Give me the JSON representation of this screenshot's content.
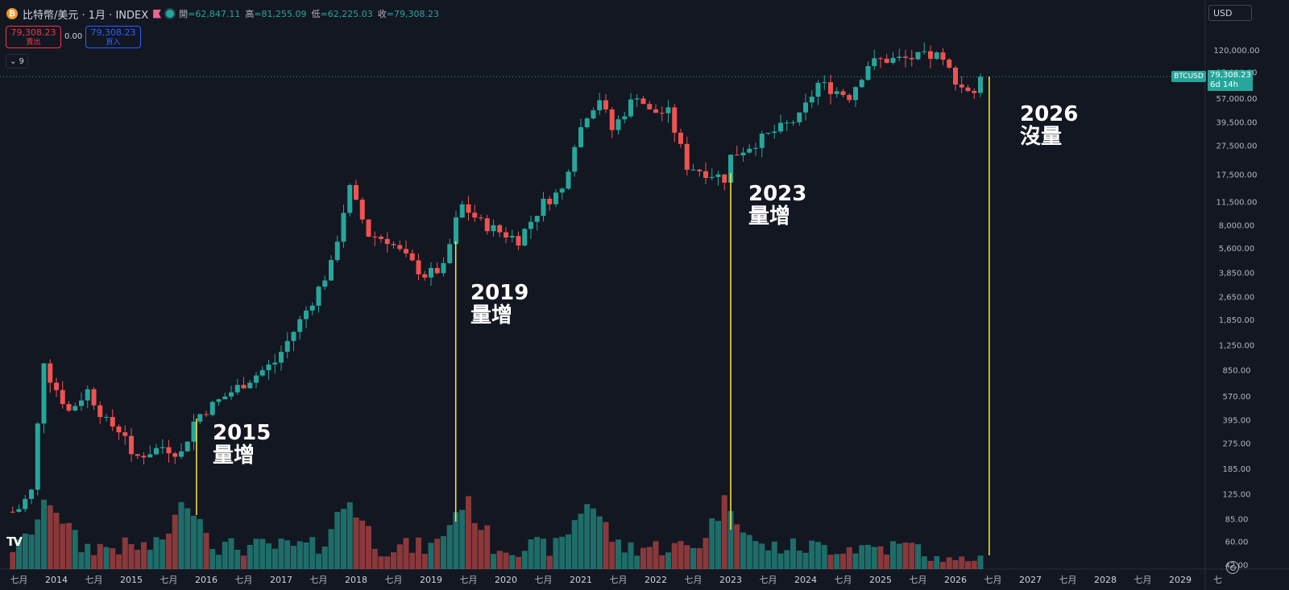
{
  "header": {
    "symbol_title": "比特幣/美元 · 1月 · INDEX",
    "open_label": "開",
    "open_value": "=62,847.11",
    "high_label": "高",
    "high_value": "=81,255.09",
    "low_label": "低",
    "low_value": "=62,225.03",
    "close_label": "收",
    "close_value": "=79,308.23",
    "sell_price": "79,308.23",
    "sell_label": "賣出",
    "buy_price": "79,308.23",
    "buy_label": "買入",
    "spread": "0.00",
    "indicators_count": "9",
    "currency": "USD"
  },
  "price_tag": {
    "symbol": "BTCUSD",
    "price": "79,308.23",
    "countdown": "6d 14h"
  },
  "annotations": [
    {
      "year": "2015",
      "text": "量增"
    },
    {
      "year": "2019",
      "text": "量增"
    },
    {
      "year": "2023",
      "text": "量增"
    },
    {
      "year": "2026",
      "text": "沒量"
    }
  ],
  "colors": {
    "up": "#26a69a",
    "down": "#ef5350",
    "background": "#131722",
    "annotation_line": "#ffeb3b"
  },
  "icons": {
    "symbol": "bitcoin-icon",
    "flag": "flag-icon",
    "status": "status-dot-icon",
    "settings": "gear-icon",
    "logo": "tradingview-logo"
  },
  "chart_data": {
    "type": "candlestick",
    "interval": "1 month",
    "y_scale": "log",
    "y_ticks": [
      "120,000.00",
      "85,000.00",
      "57,000.00",
      "39,500.00",
      "27,500.00",
      "17,500.00",
      "11,500.00",
      "8,000.00",
      "5,600.00",
      "3,850.00",
      "2,650.00",
      "1,850.00",
      "1,250.00",
      "850.00",
      "570.00",
      "395.00",
      "275.00",
      "185.00",
      "125.00",
      "85.00",
      "60.00",
      "42.00"
    ],
    "x_ticks": [
      "七月",
      "2014",
      "七月",
      "2015",
      "七月",
      "2016",
      "七月",
      "2017",
      "七月",
      "2018",
      "七月",
      "2019",
      "七月",
      "2020",
      "七月",
      "2021",
      "七月",
      "2022",
      "七月",
      "2023",
      "七月",
      "2024",
      "七月",
      "2025",
      "七月",
      "2026",
      "七月",
      "2027",
      "七月",
      "2028",
      "七月",
      "2029",
      "七"
    ],
    "series": [
      {
        "name": "BTCUSD close (approx.)",
        "points": [
          [
            "2013-06",
            95
          ],
          [
            "2013-07",
            100
          ],
          [
            "2013-09",
            130
          ],
          [
            "2013-11",
            1000
          ],
          [
            "2013-12",
            750
          ],
          [
            "2014-03",
            450
          ],
          [
            "2014-06",
            620
          ],
          [
            "2014-09",
            380
          ],
          [
            "2014-12",
            320
          ],
          [
            "2015-01",
            215
          ],
          [
            "2015-06",
            260
          ],
          [
            "2015-09",
            235
          ],
          [
            "2015-11",
            380
          ],
          [
            "2015-12",
            430
          ],
          [
            "2016-06",
            650
          ],
          [
            "2016-12",
            960
          ],
          [
            "2017-06",
            2500
          ],
          [
            "2017-09",
            4300
          ],
          [
            "2017-11",
            10000
          ],
          [
            "2017-12",
            14000
          ],
          [
            "2018-03",
            6900
          ],
          [
            "2018-06",
            6400
          ],
          [
            "2018-11",
            4000
          ],
          [
            "2018-12",
            3700
          ],
          [
            "2019-03",
            4100
          ],
          [
            "2019-05",
            8500
          ],
          [
            "2019-06",
            10800
          ],
          [
            "2019-09",
            8300
          ],
          [
            "2019-12",
            7200
          ],
          [
            "2020-03",
            6400
          ],
          [
            "2020-07",
            11300
          ],
          [
            "2020-10",
            13800
          ],
          [
            "2020-12",
            29000
          ],
          [
            "2021-02",
            45000
          ],
          [
            "2021-04",
            57000
          ],
          [
            "2021-06",
            35000
          ],
          [
            "2021-10",
            61000
          ],
          [
            "2021-12",
            46000
          ],
          [
            "2022-03",
            45500
          ],
          [
            "2022-06",
            20000
          ],
          [
            "2022-11",
            17100
          ],
          [
            "2022-12",
            16500
          ],
          [
            "2023-01",
            23100
          ],
          [
            "2023-06",
            30400
          ],
          [
            "2023-12",
            42200
          ],
          [
            "2024-03",
            71300
          ],
          [
            "2024-08",
            59000
          ],
          [
            "2024-11",
            96400
          ],
          [
            "2025-01",
            102400
          ],
          [
            "2025-05",
            104600
          ],
          [
            "2025-08",
            108200
          ],
          [
            "2025-10",
            109500
          ],
          [
            "2025-12",
            87500
          ],
          [
            "2026-02",
            68000
          ],
          [
            "2026-04",
            62800
          ],
          [
            "2026-05",
            79308.23
          ]
        ]
      }
    ],
    "volume": "shown as bars at bottom; green = up month, red = down month"
  }
}
